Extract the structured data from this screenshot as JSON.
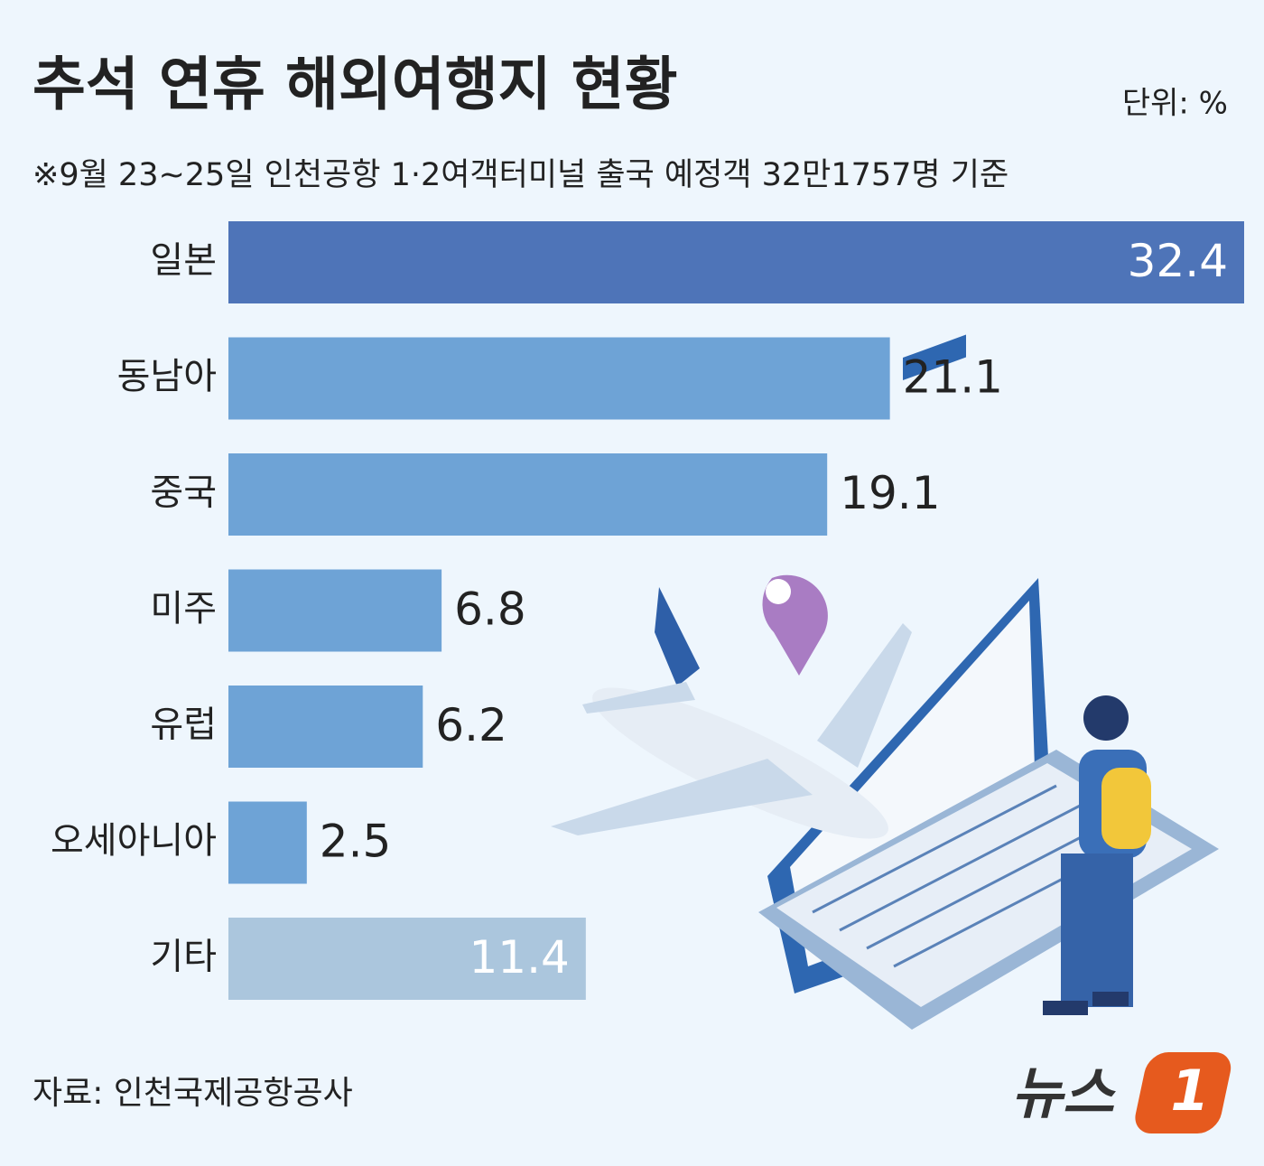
{
  "chart_data": {
    "type": "bar",
    "orientation": "horizontal",
    "title": "추석 연휴 해외여행지 현황",
    "subtitle": "※9월 23~25일 인천공항 1·2여객터미널  출국 예정객 32만1757명 기준",
    "unit": "단위: %",
    "source": "자료: 인천국제공항공사",
    "logo_text": "뉴스",
    "logo_mark": "1",
    "categories": [
      "일본",
      "동남아",
      "중국",
      "미주",
      "유럽",
      "오세아니아",
      "기타"
    ],
    "values": [
      32.4,
      21.1,
      19.1,
      6.8,
      6.2,
      2.5,
      11.4
    ],
    "colors": [
      "#4e74b8",
      "#6ea3d6",
      "#6ea3d6",
      "#6ea3d6",
      "#6ea3d6",
      "#6ea3d6",
      "#abc6dd"
    ],
    "label_inside": [
      true,
      false,
      false,
      false,
      false,
      false,
      true
    ],
    "xlim": [
      0,
      32.4
    ]
  }
}
